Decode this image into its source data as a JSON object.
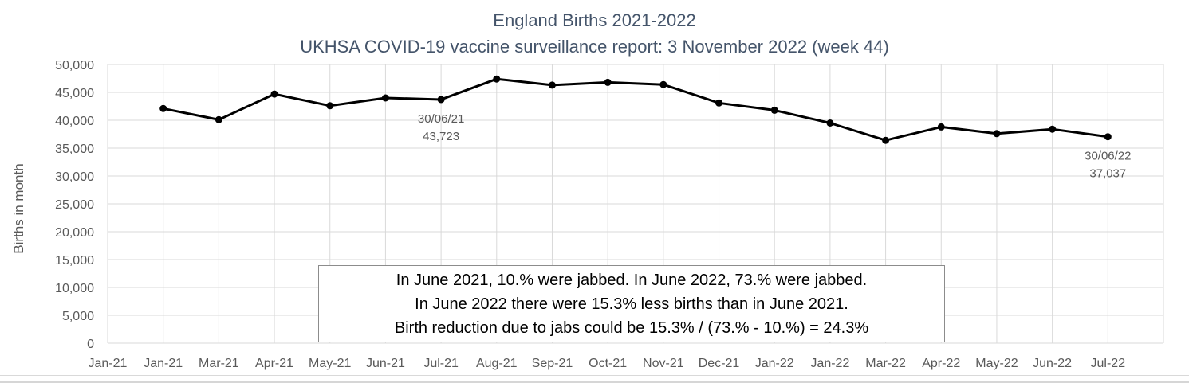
{
  "colors": {
    "title_text": "#44546a",
    "axis_text": "#595959",
    "gridline": "#d9d9d9",
    "series_line": "#000000",
    "textbox_border": "#8c8c8c",
    "background": "#ffffff"
  },
  "chart_data": {
    "type": "line",
    "title": "England Births 2021-2022",
    "subtitle": "UKHSA COVID-19 vaccine surveillance report: 3 November 2022 (week 44)",
    "xlabel": "",
    "ylabel": "Births in month",
    "ylim": [
      0,
      50000
    ],
    "ytick_step": 5000,
    "grid": true,
    "legend": false,
    "categories": [
      "Jan-21",
      "Jan-21",
      "Mar-21",
      "Apr-21",
      "May-21",
      "Jun-21",
      "Jul-21",
      "Aug-21",
      "Sep-21",
      "Oct-21",
      "Nov-21",
      "Dec-21",
      "Jan-22",
      "Jan-22",
      "Mar-22",
      "Apr-22",
      "May-22",
      "Jun-22",
      "Jul-22"
    ],
    "series": [
      {
        "name": "Births in month",
        "color": "#000000",
        "start_index": 1,
        "values": [
          42100,
          40100,
          44700,
          42600,
          44000,
          43723,
          47400,
          46300,
          46800,
          46400,
          43100,
          41800,
          39500,
          36400,
          38800,
          37600,
          38400,
          37037
        ]
      }
    ],
    "annotations": [
      {
        "category_index": 6,
        "lines": [
          "30/06/21",
          "43,723"
        ]
      },
      {
        "category_index": 18,
        "lines": [
          "30/06/22",
          "37,037"
        ]
      }
    ]
  },
  "textbox": {
    "lines": [
      "In June 2021, 10.% were jabbed. In June 2022, 73.% were jabbed.",
      "In June 2022 there were 15.3% less births than in June 2021.",
      "Birth reduction due to jabs could be 15.3% / (73.% - 10.%) = 24.3%"
    ]
  }
}
